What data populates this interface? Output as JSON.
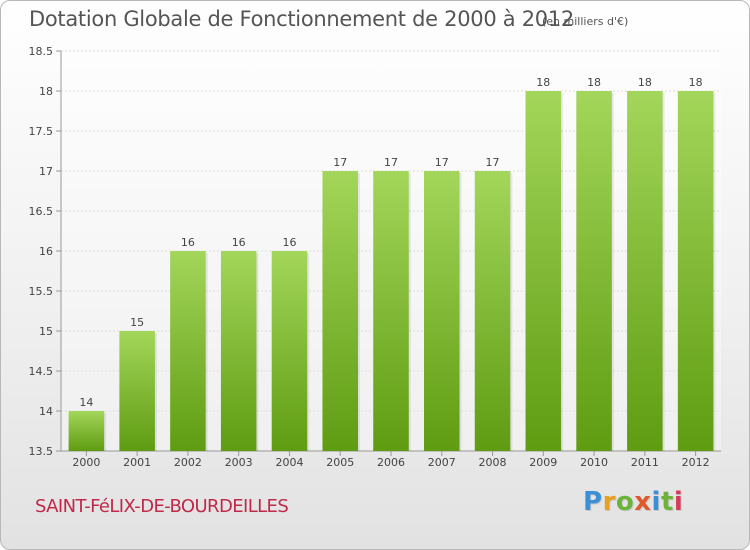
{
  "title": "Dotation Globale de Fonctionnement de 2000 à 2012",
  "unit_note": "(en milliers d'€)",
  "commune": "SAINT-FéLIX-DE-BOURDEILLES",
  "logo": {
    "letters": [
      "P",
      "r",
      "o",
      "x",
      "i",
      "t",
      "i"
    ],
    "colors": [
      "#3b8fd6",
      "#e8a020",
      "#6cb33a",
      "#e05a2a",
      "#3b8fd6",
      "#6cb33a",
      "#d63b5a"
    ]
  },
  "colors": {
    "bar_top": "#a3d65a",
    "bar_bottom": "#5f9c12",
    "axis": "#999999",
    "grid": "#dddddd",
    "text": "#444444"
  },
  "chart_data": {
    "type": "bar",
    "title": "Dotation Globale de Fonctionnement de 2000 à 2012",
    "categories": [
      "2000",
      "2001",
      "2002",
      "2003",
      "2004",
      "2005",
      "2006",
      "2007",
      "2008",
      "2009",
      "2010",
      "2011",
      "2012"
    ],
    "values": [
      14,
      15,
      16,
      16,
      16,
      17,
      17,
      17,
      17,
      18,
      18,
      18,
      18
    ],
    "data_labels": [
      "14",
      "15",
      "16",
      "16",
      "16",
      "17",
      "17",
      "17",
      "17",
      "18",
      "18",
      "18",
      "18"
    ],
    "ylim": [
      13.5,
      18.5
    ],
    "yticks": [
      "13.5",
      "14",
      "14.5",
      "15",
      "15.5",
      "16",
      "16.5",
      "17",
      "17.5",
      "18",
      "18.5"
    ],
    "grid": true,
    "legend": "none"
  }
}
